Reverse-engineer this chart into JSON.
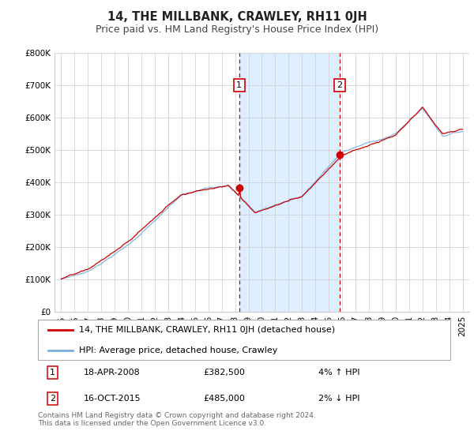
{
  "title": "14, THE MILLBANK, CRAWLEY, RH11 0JH",
  "subtitle": "Price paid vs. HM Land Registry's House Price Index (HPI)",
  "ylim": [
    0,
    800000
  ],
  "yticks": [
    0,
    100000,
    200000,
    300000,
    400000,
    500000,
    600000,
    700000,
    800000
  ],
  "ytick_labels": [
    "£0",
    "£100K",
    "£200K",
    "£300K",
    "£400K",
    "£500K",
    "£600K",
    "£700K",
    "£800K"
  ],
  "xlim_start": 1994.5,
  "xlim_end": 2025.5,
  "xticks": [
    1995,
    1996,
    1997,
    1998,
    1999,
    2000,
    2001,
    2002,
    2003,
    2004,
    2005,
    2006,
    2007,
    2008,
    2009,
    2010,
    2011,
    2012,
    2013,
    2014,
    2015,
    2016,
    2017,
    2018,
    2019,
    2020,
    2021,
    2022,
    2023,
    2024,
    2025
  ],
  "sale1_x": 2008.3,
  "sale1_y": 382500,
  "sale1_label": "1",
  "sale1_date": "18-APR-2008",
  "sale1_price": "£382,500",
  "sale1_hpi": "4% ↑ HPI",
  "sale2_x": 2015.8,
  "sale2_y": 485000,
  "sale2_label": "2",
  "sale2_date": "16-OCT-2015",
  "sale2_price": "£485,000",
  "sale2_hpi": "2% ↓ HPI",
  "red_line_color": "#cc0000",
  "blue_line_color": "#7aaedc",
  "shaded_region_color": "#ddeeff",
  "vline_color": "#cc0000",
  "grid_color": "#cccccc",
  "bg_color": "#ffffff",
  "legend1_text": "14, THE MILLBANK, CRAWLEY, RH11 0JH (detached house)",
  "legend2_text": "HPI: Average price, detached house, Crawley",
  "footer_text": "Contains HM Land Registry data © Crown copyright and database right 2024.\nThis data is licensed under the Open Government Licence v3.0.",
  "title_fontsize": 10.5,
  "subtitle_fontsize": 9,
  "tick_fontsize": 7.5,
  "legend_fontsize": 8,
  "ann_fontsize": 8,
  "footer_fontsize": 6.5
}
